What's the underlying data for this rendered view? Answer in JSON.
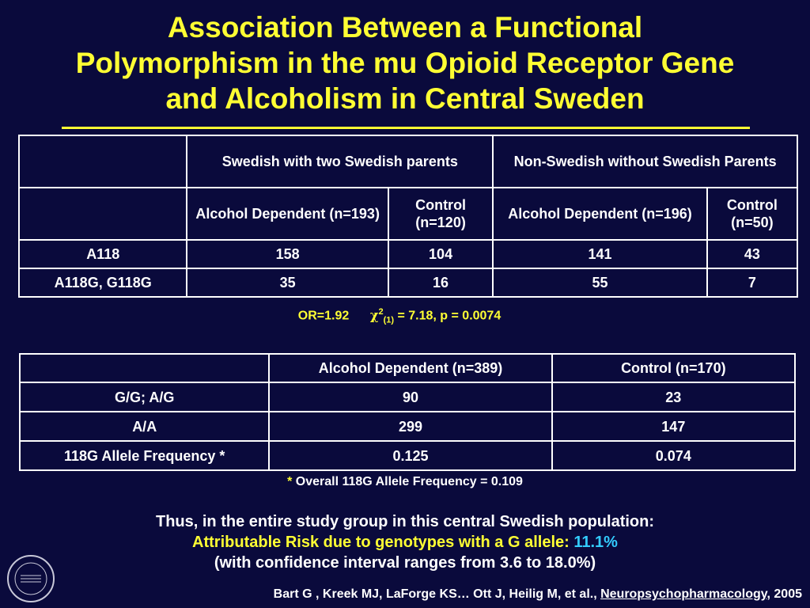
{
  "title_lines": [
    "Association Between a Functional",
    "Polymorphism in the mu Opioid Receptor Gene",
    "and Alcoholism in Central Sweden"
  ],
  "table1": {
    "group_headers": [
      "Swedish with two Swedish parents",
      "Non-Swedish without Swedish Parents"
    ],
    "sub_headers": [
      "Alcohol Dependent (n=193)",
      "Control (n=120)",
      "Alcohol Dependent (n=196)",
      "Control (n=50)"
    ],
    "rows": [
      {
        "label": "A118",
        "values": [
          "158",
          "104",
          "141",
          "43"
        ]
      },
      {
        "label": "A118G, G118G",
        "values": [
          "35",
          "16",
          "55",
          "7"
        ]
      }
    ]
  },
  "stats": {
    "or": "OR=1.92",
    "chi_symbol": "χ",
    "chi_sup": "2",
    "chi_sub": "(1)",
    "chi_rest": " = 7.18, p = 0.0074"
  },
  "table2": {
    "headers": [
      "Alcohol Dependent (n=389)",
      "Control (n=170)"
    ],
    "rows": [
      {
        "label": "G/G; A/G",
        "values": [
          "90",
          "23"
        ]
      },
      {
        "label": "A/A",
        "values": [
          "299",
          "147"
        ]
      },
      {
        "label": "118G Allele Frequency *",
        "values": [
          "0.125",
          "0.074"
        ]
      }
    ]
  },
  "footnote": {
    "star": "*",
    "text": " Overall 118G Allele Frequency = 0.109"
  },
  "summary": {
    "line1": "Thus, in the entire study group in this central Swedish population:",
    "line2_label": "Attributable Risk due to genotypes with a G allele: ",
    "line2_value": "11.1%",
    "line3": "(with confidence interval ranges from 3.6 to 18.0%)"
  },
  "citation": {
    "authors": "Bart G , Kreek MJ, LaForge KS… Ott J, Heilig M, et al., ",
    "journal": "Neuropsychopharmacology",
    "year": ", 2005"
  },
  "seal_text": "THE ROCKEFELLER UNIVERSITY",
  "colors": {
    "background": "#0a0a3c",
    "title": "#ffff33",
    "accent": "#33ccff"
  }
}
